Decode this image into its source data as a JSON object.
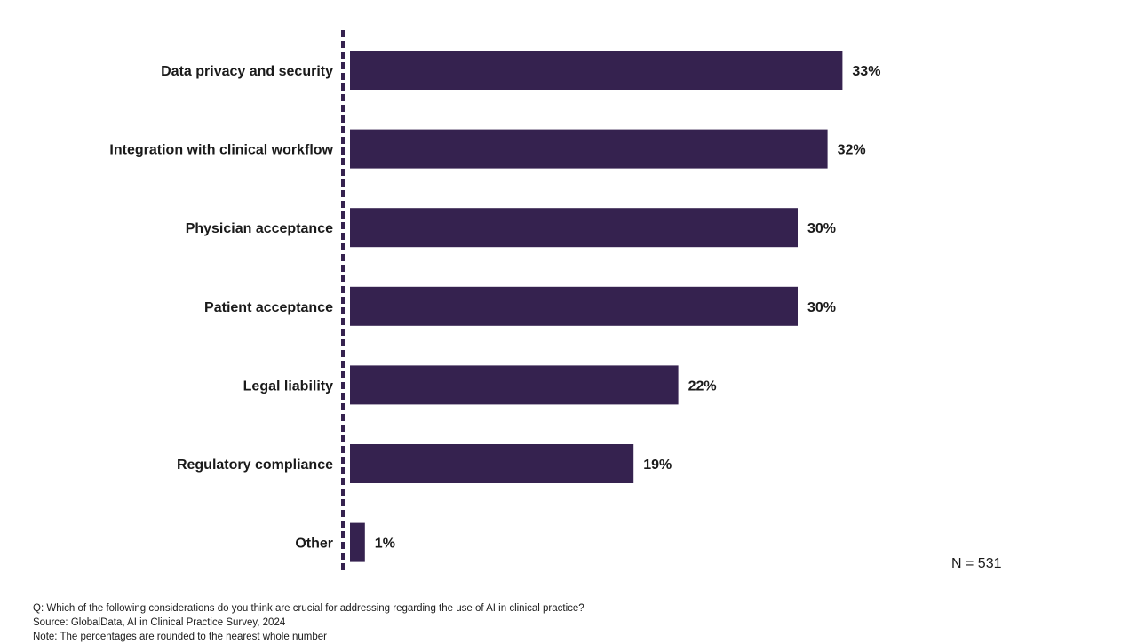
{
  "chart_data": {
    "type": "bar",
    "orientation": "horizontal",
    "categories": [
      "Data privacy and security",
      "Integration with clinical workflow",
      "Physician acceptance",
      "Patient acceptance",
      "Legal liability",
      "Regulatory compliance",
      "Other"
    ],
    "values": [
      33,
      32,
      30,
      30,
      22,
      19,
      1
    ],
    "value_labels": [
      "33%",
      "32%",
      "30%",
      "30%",
      "22%",
      "19%",
      "1%"
    ],
    "unit": "%",
    "xlim": [
      0,
      35
    ],
    "grid": false,
    "title": "",
    "xlabel": "",
    "ylabel": "",
    "bar_color": "#35224f"
  },
  "sample_size": "N = 531",
  "footnotes": {
    "question": "Q: Which of the following considerations do you think are crucial for addressing regarding the use of AI in clinical practice?",
    "source": "Source: GlobalData, AI in Clinical Practice Survey, 2024",
    "note": "Note: The percentages are rounded to the nearest whole number"
  }
}
